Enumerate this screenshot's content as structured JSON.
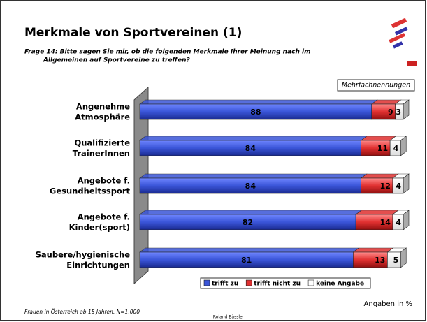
{
  "title": "Merkmale von Sportvereinen (1)",
  "subtitle": [
    "Frage 14: Bitte sagen Sie mir, ob die folgenden Merkmale Ihrer Meinung nach im",
    "Allgemeinen auf Sportvereine zu treffen?"
  ],
  "note": "Mehrfachnennungen",
  "chart_data": {
    "type": "stacked-bar-horizontal",
    "categories": [
      [
        "Angenehme",
        "Atmosphäre"
      ],
      [
        "Qualifizierte",
        "TrainerInnen"
      ],
      [
        "Angebote f.",
        "Gesundheitssport"
      ],
      [
        "Angebote f.",
        "Kinder(sport)"
      ],
      [
        "Saubere/hygienische",
        "Einrichtungen"
      ]
    ],
    "series": [
      {
        "name": "trifft zu",
        "color": "#3a55d8",
        "values": [
          88,
          84,
          84,
          82,
          81
        ]
      },
      {
        "name": "trifft nicht zu",
        "color": "#e03030",
        "values": [
          9,
          11,
          12,
          14,
          13
        ]
      },
      {
        "name": "keine Angabe",
        "color": "#ffffff",
        "values": [
          3,
          4,
          4,
          4,
          5
        ]
      }
    ],
    "xlim": [
      0,
      100
    ]
  },
  "unit_note": "Angaben in %",
  "footnote": "Frauen in Österreich ab 15 Jahren, N=1.000",
  "author": "Roland Bässler"
}
